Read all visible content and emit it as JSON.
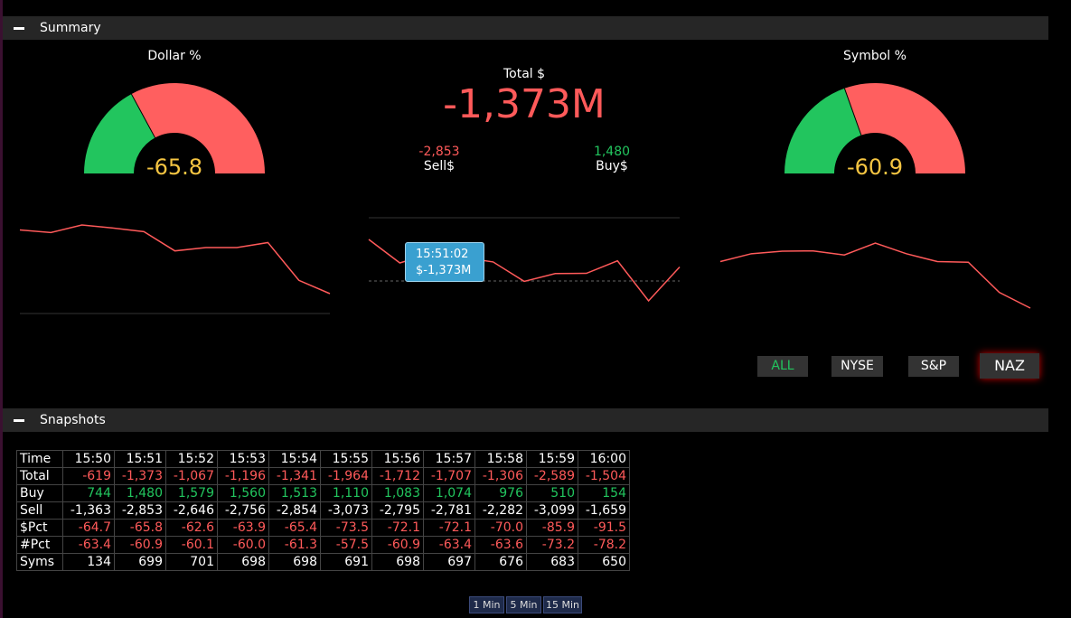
{
  "summary": {
    "title": "Summary",
    "dollar_gauge": {
      "label": "Dollar %",
      "value": -65.8
    },
    "total": {
      "label": "Total $",
      "value": "-1,373M",
      "sell": {
        "value": "-2,853",
        "label": "Sell$"
      },
      "buy": {
        "value": "1,480",
        "label": "Buy$"
      }
    },
    "symbol_gauge": {
      "label": "Symbol %",
      "value": -60.9
    },
    "tooltip": {
      "time": "15:51:02",
      "value": "$-1,373M"
    },
    "filters": [
      "ALL",
      "NYSE",
      "S&P",
      "NAZ"
    ]
  },
  "snapshots": {
    "title": "Snapshots",
    "table": {
      "header": [
        "Time",
        "15:50",
        "15:51",
        "15:52",
        "15:53",
        "15:54",
        "15:55",
        "15:56",
        "15:57",
        "15:58",
        "15:59",
        "16:00"
      ],
      "rows": [
        [
          "Total",
          "-619",
          "-1,373",
          "-1,067",
          "-1,196",
          "-1,341",
          "-1,964",
          "-1,712",
          "-1,707",
          "-1,306",
          "-2,589",
          "-1,504"
        ],
        [
          "Buy",
          "744",
          "1,480",
          "1,579",
          "1,560",
          "1,513",
          "1,110",
          "1,083",
          "1,074",
          "976",
          "510",
          "154"
        ],
        [
          "Sell",
          "-1,363",
          "-2,853",
          "-2,646",
          "-2,756",
          "-2,854",
          "-3,073",
          "-2,795",
          "-2,781",
          "-2,282",
          "-3,099",
          "-1,659"
        ],
        [
          "$Pct",
          "-64.7",
          "-65.8",
          "-62.6",
          "-63.9",
          "-65.4",
          "-73.5",
          "-72.1",
          "-72.1",
          "-70.0",
          "-85.9",
          "-91.5"
        ],
        [
          "#Pct",
          "-63.4",
          "-60.9",
          "-60.1",
          "-60.0",
          "-61.3",
          "-57.5",
          "-60.9",
          "-63.4",
          "-63.6",
          "-73.2",
          "-78.2"
        ],
        [
          "Syms",
          "134",
          "699",
          "701",
          "698",
          "698",
          "691",
          "698",
          "697",
          "676",
          "683",
          "650"
        ]
      ]
    }
  },
  "intervals": [
    "1 Min",
    "5 Min",
    "15 Min"
  ]
}
